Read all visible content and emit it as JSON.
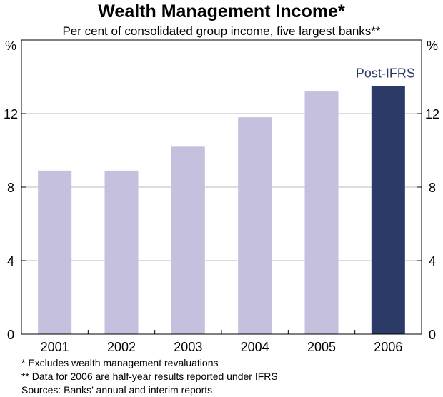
{
  "chart_data": {
    "type": "bar",
    "title": "Wealth Management Income*",
    "subtitle": "Per cent of consolidated group income, five largest banks**",
    "ylabel_left": "%",
    "ylabel_right": "%",
    "ylim": [
      0,
      16
    ],
    "yticks": [
      0,
      4,
      8,
      12
    ],
    "grid": true,
    "categories": [
      "2001",
      "2002",
      "2003",
      "2004",
      "2005",
      "2006"
    ],
    "values": [
      8.9,
      8.9,
      10.2,
      11.8,
      13.2,
      13.5
    ],
    "bar_colors": [
      "#c4c0dd",
      "#c4c0dd",
      "#c4c0dd",
      "#c4c0dd",
      "#c4c0dd",
      "#2b3a67"
    ],
    "annotation": {
      "text": "Post-IFRS",
      "category": "2006",
      "color": "#2b3a67"
    }
  },
  "footnotes": [
    "*   Excludes wealth management revaluations",
    "** Data for 2006 are half-year results reported under IFRS",
    "Sources: Banks’ annual and interim reports"
  ]
}
